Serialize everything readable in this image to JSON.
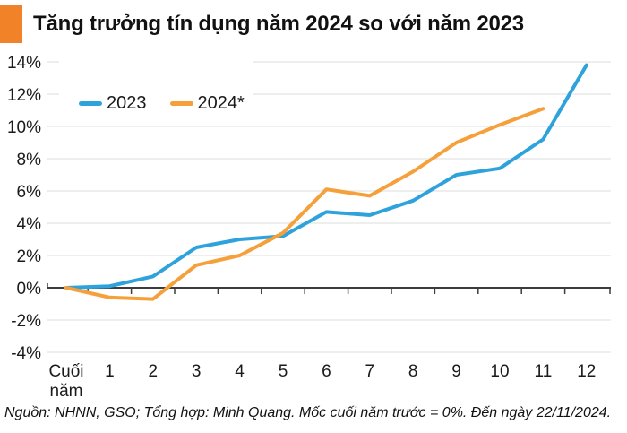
{
  "header": {
    "title": "Tăng trưởng tín dụng năm 2024 so với năm 2023",
    "accent_color": "#F28227"
  },
  "chart_data": {
    "type": "line",
    "title": "Tăng trưởng tín dụng năm 2024 so với năm 2023",
    "x_categories": [
      "Cuối năm",
      "1",
      "2",
      "3",
      "4",
      "5",
      "6",
      "7",
      "8",
      "9",
      "10",
      "11",
      "12"
    ],
    "y_ticks": [
      "14%",
      "12%",
      "10%",
      "8%",
      "6%",
      "4%",
      "2%",
      "0%",
      "-2%",
      "-4%"
    ],
    "ylim": [
      -4,
      14
    ],
    "y_step": 2,
    "grid": true,
    "legend_position": "top-left",
    "baseline_note": "0% = cuối năm trước",
    "series": [
      {
        "name": "2023",
        "color": "#2EA3DB",
        "values": [
          0,
          0.1,
          0.7,
          2.5,
          3.0,
          3.2,
          4.7,
          4.5,
          5.4,
          7.0,
          7.4,
          9.2,
          13.8
        ]
      },
      {
        "name": "2024*",
        "color": "#F5A03A",
        "values": [
          0,
          -0.6,
          -0.7,
          1.4,
          2.0,
          3.4,
          6.1,
          5.7,
          7.2,
          9.0,
          10.1,
          11.1
        ]
      }
    ],
    "colors": {
      "grid": "#E3E3E3",
      "axis": "#3C3C3C",
      "text": "#1A1A1A"
    }
  },
  "footer": {
    "source_note": "Nguồn: NHNN, GSO; Tổng hợp: Minh Quang. Mốc cuối năm trước = 0%. Đến ngày 22/11/2024."
  }
}
